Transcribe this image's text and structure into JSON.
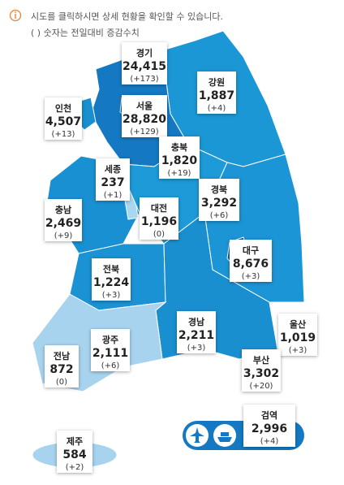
{
  "notice": {
    "message": "시도를 클릭하시면 상세 현황을 확인할 수 있습니다.",
    "legend": "( ) 숫자는 전일대비 증감수치"
  },
  "regions": [
    {
      "name": "경기",
      "total": "24,415",
      "change": "(+173)"
    },
    {
      "name": "강원",
      "total": "1,887",
      "change": "(+4)"
    },
    {
      "name": "인천",
      "total": "4,507",
      "change": "(+13)"
    },
    {
      "name": "서울",
      "total": "28,820",
      "change": "(+129)"
    },
    {
      "name": "충북",
      "total": "1,820",
      "change": "(+19)"
    },
    {
      "name": "세종",
      "total": "237",
      "change": "(+1)"
    },
    {
      "name": "경북",
      "total": "3,292",
      "change": "(+6)"
    },
    {
      "name": "충남",
      "total": "2,469",
      "change": "(+9)"
    },
    {
      "name": "대전",
      "total": "1,196",
      "change": "(0)"
    },
    {
      "name": "대구",
      "total": "8,676",
      "change": "(+3)"
    },
    {
      "name": "전북",
      "total": "1,224",
      "change": "(+3)"
    },
    {
      "name": "경남",
      "total": "2,211",
      "change": "(+3)"
    },
    {
      "name": "울산",
      "total": "1,019",
      "change": "(+3)"
    },
    {
      "name": "광주",
      "total": "2,111",
      "change": "(+6)"
    },
    {
      "name": "전남",
      "total": "872",
      "change": "(0)"
    },
    {
      "name": "부산",
      "total": "3,302",
      "change": "(+20)"
    },
    {
      "name": "검역",
      "total": "2,996",
      "change": "(+4)"
    },
    {
      "name": "제주",
      "total": "584",
      "change": "(+2)"
    }
  ]
}
